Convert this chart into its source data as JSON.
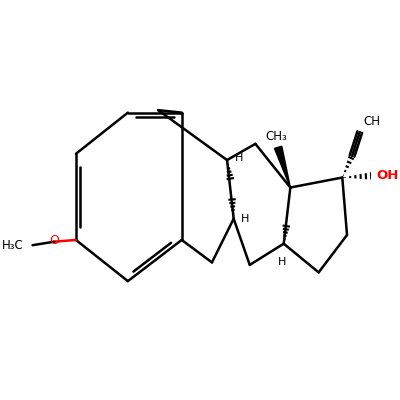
{
  "bg_color": "#ffffff",
  "bond_color": "#000000",
  "red_color": "#ff0000",
  "lw": 1.8,
  "fig_size": [
    4.0,
    4.0
  ],
  "dpi": 100,
  "xlim": [
    0,
    10
  ],
  "ylim": [
    0,
    10
  ]
}
